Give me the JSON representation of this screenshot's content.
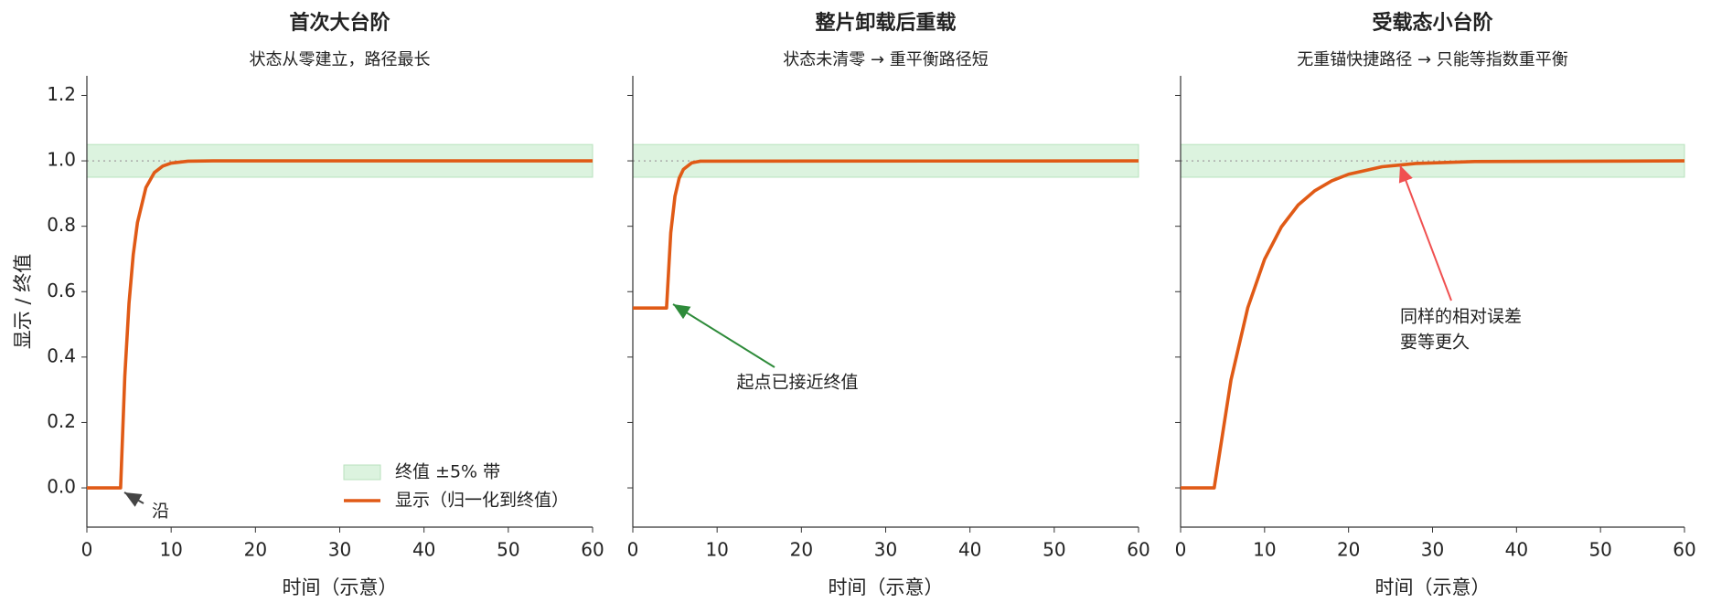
{
  "chart_data": [
    {
      "type": "line",
      "title": "首次大台阶",
      "subtitle": "状态从零建立，路径最长",
      "xlabel": "时间（示意）",
      "ylabel": "显示 / 终值",
      "xlim": [
        0,
        60
      ],
      "ylim": [
        -0.12,
        1.26
      ],
      "xticks": [
        0,
        10,
        20,
        30,
        40,
        50,
        60
      ],
      "yticks": [
        {
          "value": 0,
          "label": "0.0"
        },
        0.2,
        0.4,
        0.6,
        0.8,
        {
          "value": 1,
          "label": "1.0"
        },
        1.2
      ],
      "band": {
        "name": "终值 ±5% 带",
        "range": [
          0.95,
          1.05
        ],
        "color": "#dcf3df"
      },
      "hline": 1,
      "legend": "lower right",
      "series": [
        {
          "name": "显示（归一化到终值）",
          "color": "#e05a16",
          "x": [
            0,
            4,
            4.5,
            5,
            5.5,
            6,
            7,
            8,
            9,
            10,
            12,
            15,
            60
          ],
          "values": [
            0,
            0,
            0.341,
            0.565,
            0.713,
            0.811,
            0.918,
            0.964,
            0.984,
            0.993,
            0.999,
            1.0,
            1.0
          ]
        }
      ],
      "annotations": [
        {
          "text": [
            "沿"
          ],
          "color": "#444444"
        }
      ]
    },
    {
      "type": "line",
      "title": "整片卸载后重载",
      "subtitle": "状态未清零 → 重平衡路径短",
      "xlabel": "时间（示意）",
      "xlim": [
        0,
        60
      ],
      "ylim": [
        -0.12,
        1.26
      ],
      "xticks": [
        0,
        10,
        20,
        30,
        40,
        50,
        60
      ],
      "yticks": [
        0,
        0.2,
        0.4,
        0.6,
        0.8,
        1,
        1.2
      ],
      "band": {
        "range": [
          0.95,
          1.05
        ],
        "color": "#dcf3df"
      },
      "hline": 1,
      "series": [
        {
          "color": "#e05a16",
          "x": [
            0,
            4,
            4.5,
            5,
            5.5,
            6,
            7,
            8,
            60
          ],
          "values": [
            0.55,
            0.55,
            0.78,
            0.892,
            0.947,
            0.974,
            0.994,
            0.999,
            1.0
          ]
        }
      ],
      "annotations": [
        {
          "text": [
            "起点已接近终值"
          ],
          "color": "#2e8b3a"
        }
      ]
    },
    {
      "type": "line",
      "title": "受载态小台阶",
      "subtitle": "无重锚快捷路径 → 只能等指数重平衡",
      "xlabel": "时间（示意）",
      "xlim": [
        0,
        60
      ],
      "ylim": [
        -0.12,
        1.26
      ],
      "xticks": [
        0,
        10,
        20,
        30,
        40,
        50,
        60
      ],
      "yticks": [
        0,
        0.2,
        0.4,
        0.6,
        0.8,
        1,
        1.2
      ],
      "band": {
        "range": [
          0.95,
          1.05
        ],
        "color": "#dcf3df"
      },
      "hline": 1,
      "series": [
        {
          "color": "#e05a16",
          "x": [
            0,
            4,
            6,
            8,
            10,
            12,
            14,
            16,
            18,
            20,
            24,
            28,
            35,
            60
          ],
          "values": [
            0,
            0,
            0.33,
            0.551,
            0.699,
            0.798,
            0.865,
            0.909,
            0.939,
            0.959,
            0.982,
            0.992,
            0.998,
            1.0
          ]
        }
      ],
      "annotations": [
        {
          "text": [
            "同样的相对误差",
            "要等更久"
          ],
          "color": "#f05050"
        }
      ]
    }
  ]
}
